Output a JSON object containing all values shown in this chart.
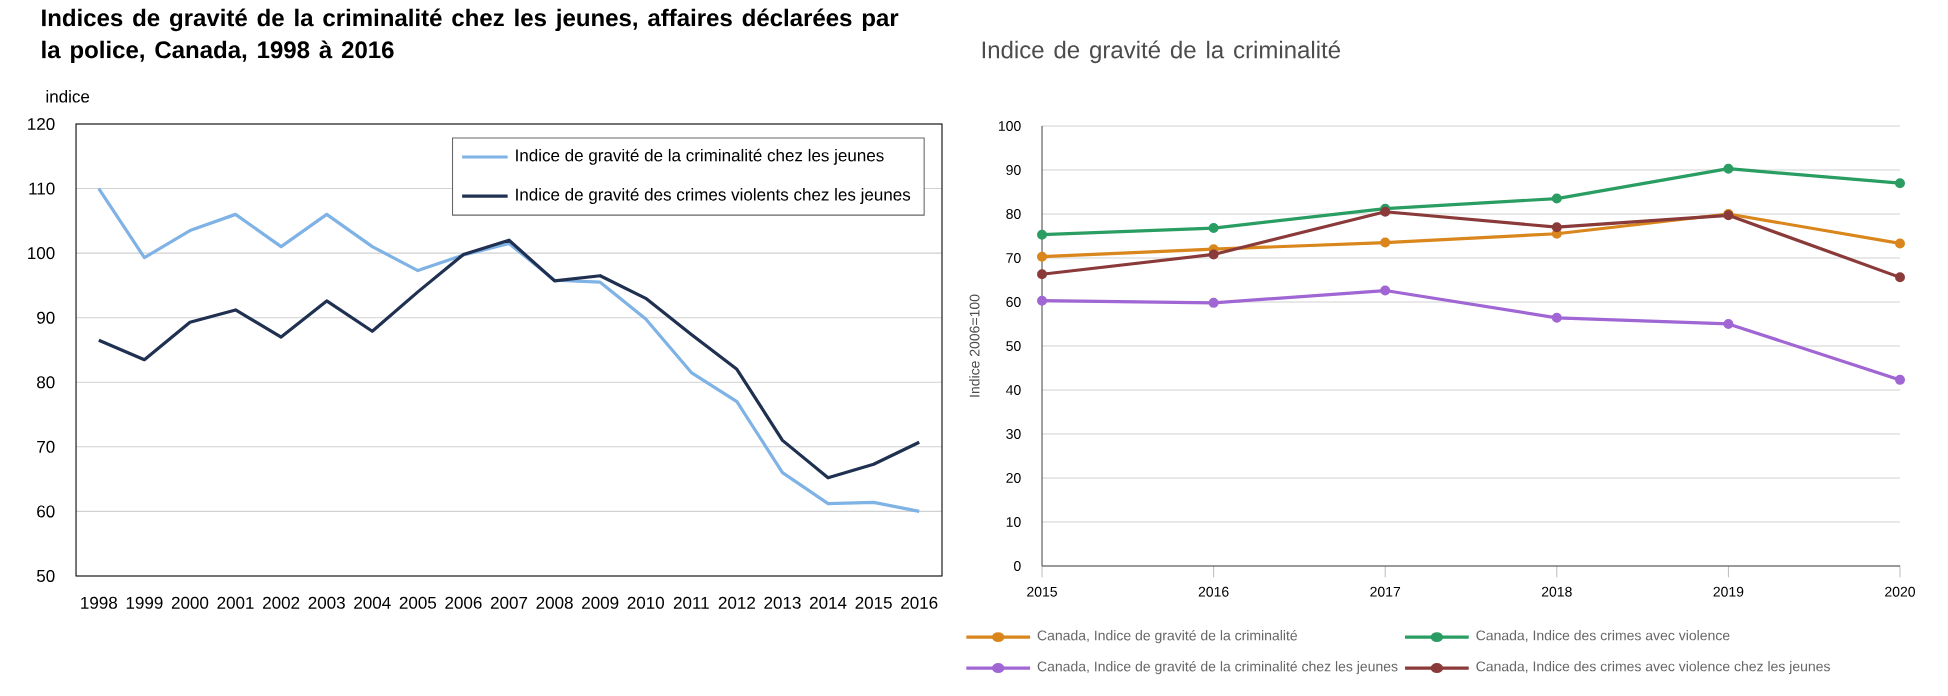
{
  "chart_data": [
    {
      "type": "line",
      "title": "Indices de gravité de la criminalité  chez les jeunes, affaires déclarées par la police, Canada, 1998 à 2016",
      "ylabel": "indice",
      "categories": [
        "1998",
        "1999",
        "2000",
        "2001",
        "2002",
        "2003",
        "2004",
        "2005",
        "2006",
        "2007",
        "2008",
        "2009",
        "2010",
        "2011",
        "2012",
        "2013",
        "2014",
        "2015",
        "2016"
      ],
      "series": [
        {
          "name": "Indice de gravité de la criminalité chez les jeunes",
          "color": "#7fb2e5",
          "values": [
            110,
            99.3,
            103.5,
            106,
            101,
            106,
            101,
            97.3,
            99.7,
            101.5,
            95.8,
            95.5,
            89.8,
            81.5,
            77,
            66,
            61.2,
            61.4,
            60
          ]
        },
        {
          "name": "Indice de gravité des crimes violents chez les jeunes",
          "color": "#1f3050",
          "values": [
            86.5,
            83.5,
            89.3,
            91.2,
            87,
            92.6,
            87.9,
            94,
            99.8,
            102,
            95.7,
            96.5,
            93,
            87.4,
            82,
            71,
            65.2,
            67.3,
            70.7
          ]
        }
      ],
      "ylim": [
        50,
        120
      ],
      "yticks": [
        50,
        60,
        70,
        80,
        90,
        100,
        110,
        120
      ],
      "grid": "y",
      "legend": "top right"
    },
    {
      "type": "line",
      "title": "Indice de gravité de la criminalité",
      "ylabel": "Indice 2006=100",
      "x": [
        2015,
        2016,
        2017,
        2018,
        2019,
        2020
      ],
      "series": [
        {
          "name": "Canada, Indice de gravité de la criminalité",
          "color": "#d9861c",
          "values": [
            70.3,
            72,
            73.5,
            75.5,
            80,
            73.3
          ]
        },
        {
          "name": "Canada, Indice des crimes avec violence",
          "color": "#2a9d63",
          "values": [
            75.3,
            76.8,
            81.2,
            83.5,
            90.3,
            87
          ]
        },
        {
          "name": "Canada, Indice de gravité de la criminalité chez les jeunes",
          "color": "#a066d3",
          "values": [
            60.3,
            59.8,
            62.6,
            56.4,
            55,
            42.3
          ]
        },
        {
          "name": "Canada, Indice des crimes avec violence chez les jeunes",
          "color": "#8b3a3a",
          "values": [
            66.3,
            70.8,
            80.5,
            77,
            79.7,
            65.6
          ]
        }
      ],
      "xlim": [
        2015,
        2020
      ],
      "xticks": [
        2015,
        2016,
        2017,
        2018,
        2019,
        2020
      ],
      "ylim": [
        0,
        100
      ],
      "yticks": [
        0,
        10,
        20,
        30,
        40,
        50,
        60,
        70,
        80,
        90,
        100
      ],
      "grid": "y",
      "legend": "bottom",
      "marker": "circle"
    }
  ]
}
